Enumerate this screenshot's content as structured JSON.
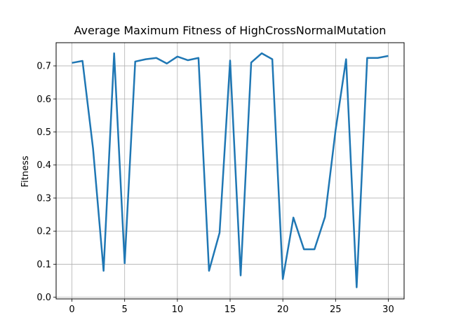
{
  "chart_data": {
    "type": "line",
    "title": "Average Maximum Fitness of HighCrossNormalMutation",
    "xlabel": "",
    "ylabel": "Fitness",
    "xlim": [
      -1.5,
      31.5
    ],
    "ylim": [
      -0.005,
      0.77
    ],
    "x_ticks": [
      0,
      5,
      10,
      15,
      20,
      25,
      30
    ],
    "y_ticks": [
      0.0,
      0.1,
      0.2,
      0.3,
      0.4,
      0.5,
      0.6,
      0.7
    ],
    "y_tick_labels": [
      "0.0",
      "0.1",
      "0.2",
      "0.3",
      "0.4",
      "0.5",
      "0.6",
      "0.7"
    ],
    "grid": true,
    "line_color": "#1f77b4",
    "series": [
      {
        "x": [
          0,
          1,
          2,
          3,
          4,
          5,
          6,
          7,
          8,
          9,
          10,
          11,
          12,
          13,
          14,
          15,
          16,
          17,
          18,
          19,
          20,
          21,
          22,
          23,
          24,
          25,
          26,
          27,
          28,
          29,
          30
        ],
        "values": [
          0.709,
          0.715,
          0.45,
          0.08,
          0.738,
          0.103,
          0.713,
          0.72,
          0.724,
          0.707,
          0.728,
          0.717,
          0.724,
          0.08,
          0.195,
          0.716,
          0.066,
          0.71,
          0.738,
          0.72,
          0.055,
          0.241,
          0.145,
          0.145,
          0.243,
          0.505,
          0.72,
          0.03,
          0.724,
          0.724,
          0.73
        ]
      }
    ]
  }
}
